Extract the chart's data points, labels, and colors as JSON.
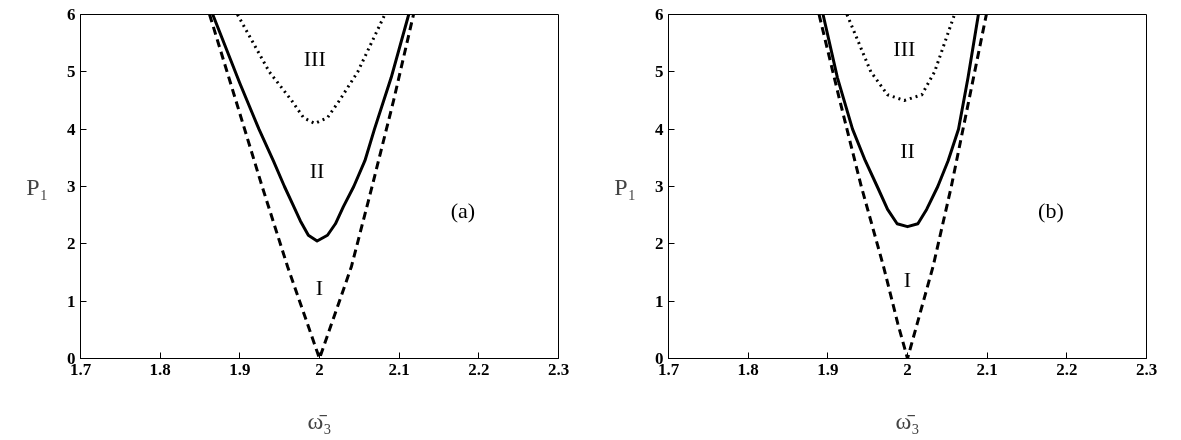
{
  "chart_data": [
    {
      "type": "line",
      "xlabel": "ω̄₃",
      "ylabel": "P₁",
      "xlim": [
        1.7,
        2.3
      ],
      "ylim": [
        0,
        6
      ],
      "xticks": [
        1.7,
        1.8,
        1.9,
        2,
        2.1,
        2.2,
        2.3
      ],
      "yticks": [
        0,
        1,
        2,
        3,
        4,
        5,
        6
      ],
      "grid": false,
      "series": [
        {
          "color": "#000000",
          "line_style": "dashed",
          "x": [
            1.862,
            1.895,
            1.928,
            1.96,
            1.985,
            2.0,
            2.015,
            2.04,
            2.066,
            2.093,
            2.118
          ],
          "values": [
            6,
            4.5,
            3,
            1.6,
            0.6,
            0,
            0.6,
            1.6,
            3,
            4.5,
            6
          ]
        },
        {
          "color": "#000000",
          "line_style": "solid",
          "x": [
            1.866,
            1.9,
            1.924,
            1.942,
            1.956,
            1.966,
            1.976,
            1.986,
            1.997,
            2.01,
            2.02,
            2.03,
            2.043,
            2.057,
            2.069,
            2.09,
            2.112
          ],
          "values": [
            6,
            4.8,
            4,
            3.45,
            3,
            2.7,
            2.4,
            2.15,
            2.05,
            2.15,
            2.35,
            2.65,
            3,
            3.45,
            4,
            4.9,
            6
          ]
        },
        {
          "color": "#000000",
          "line_style": "dotted",
          "x": [
            1.897,
            1.937,
            1.965,
            1.98,
            1.994,
            2.01,
            2.025,
            2.048,
            2.082
          ],
          "values": [
            6,
            5,
            4.5,
            4.2,
            4.1,
            4.2,
            4.5,
            5,
            6
          ]
        }
      ],
      "annotations": [
        "I",
        "II",
        "III",
        "(a)"
      ]
    },
    {
      "type": "line",
      "xlabel": "ω̄₃",
      "ylabel": "P₁",
      "xlim": [
        1.7,
        2.3
      ],
      "ylim": [
        0,
        6
      ],
      "xticks": [
        1.7,
        1.8,
        1.9,
        2,
        2.1,
        2.2,
        2.3
      ],
      "yticks": [
        0,
        1,
        2,
        3,
        4,
        5,
        6
      ],
      "grid": false,
      "series": [
        {
          "color": "#000000",
          "line_style": "dashed",
          "x": [
            1.889,
            1.915,
            1.942,
            1.97,
            1.988,
            2.0,
            2.012,
            2.032,
            2.055,
            2.077,
            2.099
          ],
          "values": [
            6,
            4.5,
            3,
            1.6,
            0.6,
            0,
            0.6,
            1.6,
            3,
            4.5,
            6
          ]
        },
        {
          "color": "#000000",
          "line_style": "solid",
          "x": [
            1.894,
            1.912,
            1.931,
            1.947,
            1.962,
            1.975,
            1.987,
            2.0,
            2.013,
            2.024,
            2.038,
            2.051,
            2.064,
            2.076,
            2.089
          ],
          "values": [
            6,
            4.9,
            4,
            3.45,
            3,
            2.6,
            2.35,
            2.3,
            2.35,
            2.6,
            3,
            3.45,
            4,
            4.9,
            6
          ]
        },
        {
          "color": "#000000",
          "line_style": "dotted",
          "x": [
            1.924,
            1.954,
            1.975,
            1.996,
            2.018,
            2.034,
            2.059
          ],
          "values": [
            6,
            5,
            4.6,
            4.5,
            4.6,
            5,
            6
          ]
        }
      ],
      "annotations": [
        "I",
        "II",
        "III",
        "(b)"
      ]
    }
  ]
}
